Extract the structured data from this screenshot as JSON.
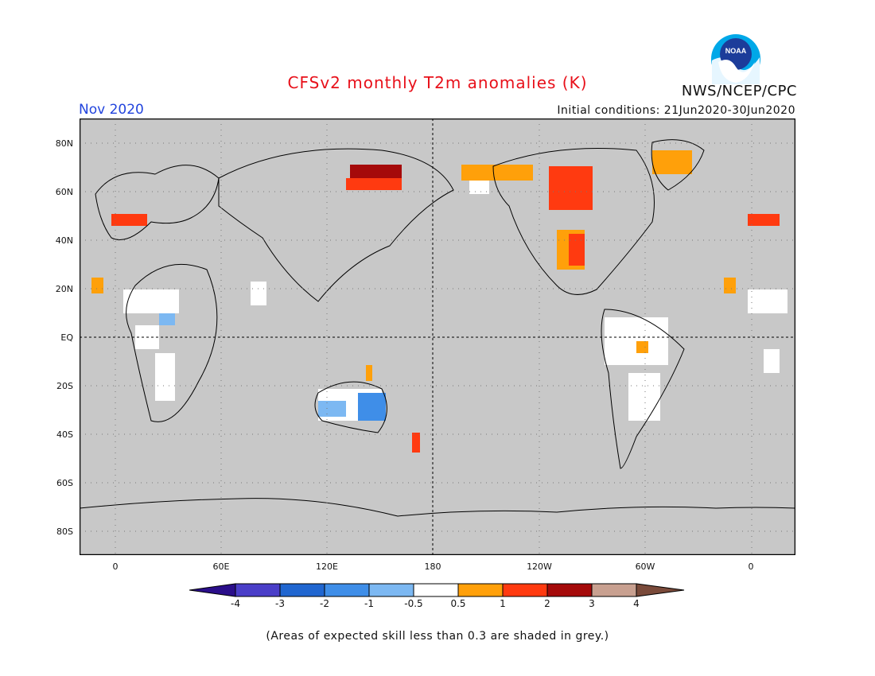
{
  "title": "CFSv2 monthly T2m anomalies (K)",
  "month": "Nov 2020",
  "agency": "NWS/NCEP/CPC",
  "logo_text": "NOAA",
  "initial_conditions": "Initial conditions: 21Jun2020-30Jun2020",
  "lat_labels": [
    "80N",
    "60N",
    "40N",
    "20N",
    "EQ",
    "20S",
    "40S",
    "60S",
    "80S"
  ],
  "lon_labels": [
    "0",
    "60E",
    "120E",
    "180",
    "120W",
    "60W",
    "0"
  ],
  "colorbar": {
    "labels": [
      "-4",
      "-3",
      "-2",
      "-1",
      "-0.5",
      "0.5",
      "1",
      "2",
      "3",
      "4"
    ],
    "colors": [
      "#2a0e8a",
      "#4a3ec8",
      "#2066d0",
      "#3f8ee8",
      "#7cb8f2",
      "#ffffff",
      "#ffa00a",
      "#ff3a10",
      "#a50a0a",
      "#c8a090",
      "#7a4a3a"
    ]
  },
  "note": "(Areas of expected skill less than 0.3 are shaded in grey.)",
  "colors": {
    "background_grey": "#c8c8c8",
    "title": "#e8101a",
    "month": "#2244dd"
  }
}
